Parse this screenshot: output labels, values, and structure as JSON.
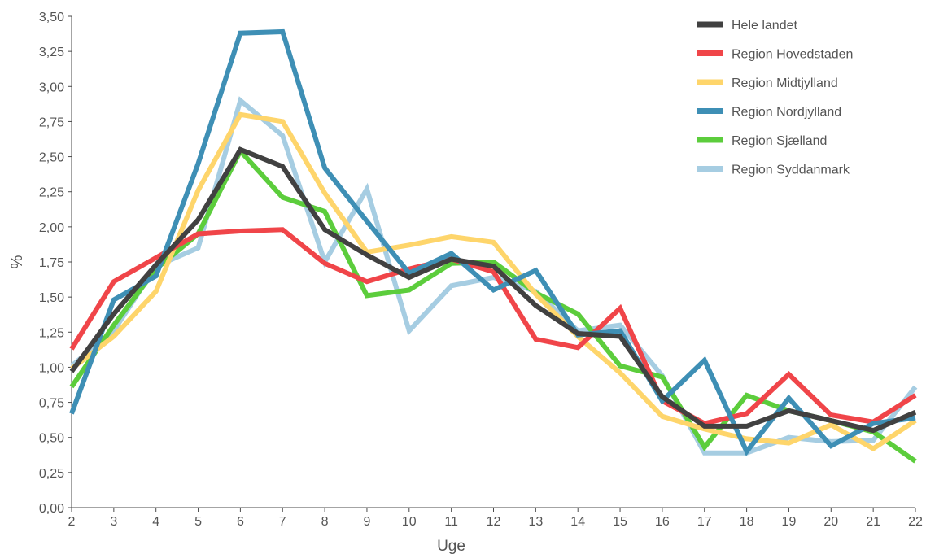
{
  "chart_data": {
    "type": "line",
    "xlabel": "Uge",
    "ylabel": "%",
    "x": [
      2,
      3,
      4,
      5,
      6,
      7,
      8,
      9,
      10,
      11,
      12,
      13,
      14,
      15,
      16,
      17,
      18,
      19,
      20,
      21,
      22
    ],
    "ylim": [
      0,
      3.5
    ],
    "yticks": [
      "0,00",
      "0,25",
      "0,50",
      "0,75",
      "1,00",
      "1,25",
      "1,50",
      "1,75",
      "2,00",
      "2,25",
      "2,50",
      "2,75",
      "3,00",
      "3,25",
      "3,50"
    ],
    "legend_position": "top-right",
    "grid": false,
    "series": [
      {
        "name": "Region Syddanmark",
        "color": "#a6cde2",
        "values": [
          1.01,
          1.26,
          1.72,
          1.85,
          2.9,
          2.65,
          1.75,
          2.27,
          1.26,
          1.58,
          1.64,
          1.54,
          1.26,
          1.3,
          0.94,
          0.39,
          0.39,
          0.5,
          0.47,
          0.48,
          0.86
        ]
      },
      {
        "name": "Region Sjælland",
        "color": "#5ccd3c",
        "values": [
          0.86,
          1.3,
          1.7,
          1.95,
          2.54,
          2.21,
          2.11,
          1.51,
          1.55,
          1.74,
          1.75,
          1.53,
          1.38,
          1.01,
          0.93,
          0.43,
          0.8,
          0.69,
          0.62,
          0.54,
          0.33
        ]
      },
      {
        "name": "Region Midtjylland",
        "color": "#fed56b",
        "values": [
          0.99,
          1.22,
          1.54,
          2.26,
          2.8,
          2.75,
          2.24,
          1.82,
          1.87,
          1.93,
          1.89,
          1.52,
          1.22,
          0.96,
          0.65,
          0.56,
          0.49,
          0.46,
          0.59,
          0.42,
          0.62
        ]
      },
      {
        "name": "Region Hovedstaden",
        "color": "#f04549",
        "values": [
          1.13,
          1.61,
          1.78,
          1.95,
          1.97,
          1.98,
          1.74,
          1.61,
          1.7,
          1.77,
          1.68,
          1.2,
          1.14,
          1.42,
          0.76,
          0.6,
          0.67,
          0.95,
          0.66,
          0.61,
          0.8
        ]
      },
      {
        "name": "Region Nordjylland",
        "color": "#3e8fb5",
        "values": [
          0.67,
          1.48,
          1.65,
          2.45,
          3.38,
          3.39,
          2.42,
          2.04,
          1.67,
          1.81,
          1.55,
          1.69,
          1.23,
          1.26,
          0.76,
          1.05,
          0.4,
          0.78,
          0.44,
          0.6,
          0.64
        ]
      },
      {
        "name": "Hele landet",
        "color": "#414141",
        "values": [
          0.97,
          1.38,
          1.73,
          2.05,
          2.55,
          2.43,
          1.98,
          1.8,
          1.64,
          1.77,
          1.72,
          1.44,
          1.24,
          1.22,
          0.79,
          0.58,
          0.58,
          0.69,
          0.62,
          0.55,
          0.68
        ]
      }
    ],
    "legend_order": [
      "Hele landet",
      "Region Hovedstaden",
      "Region Midtjylland",
      "Region Nordjylland",
      "Region Sjælland",
      "Region Syddanmark"
    ]
  },
  "colors": {
    "axis": "#4a4a4a",
    "text": "#555555",
    "background": "#ffffff"
  }
}
